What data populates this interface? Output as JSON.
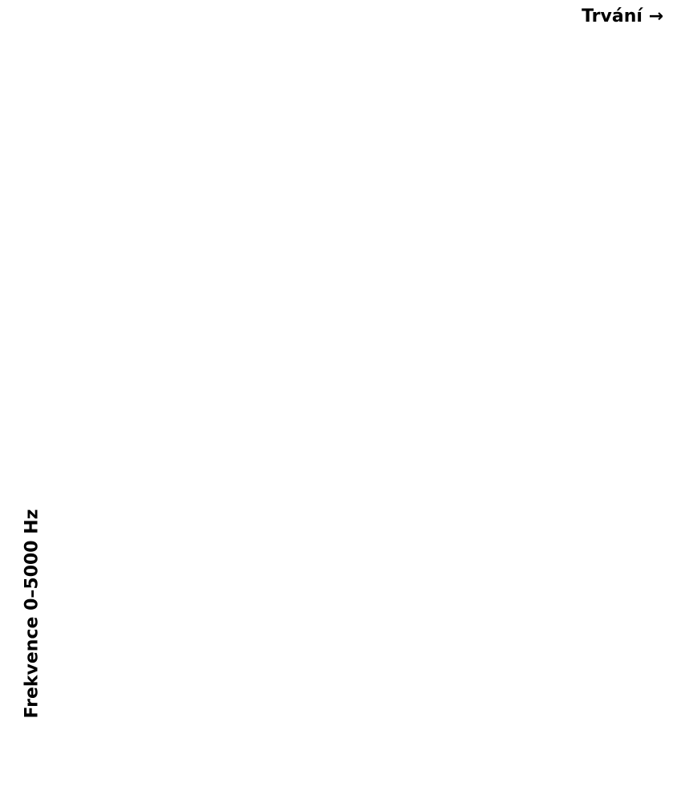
{
  "header": {
    "title": "Trvání →"
  },
  "axis": {
    "label": "Frekvence 0–5000 Hz"
  }
}
